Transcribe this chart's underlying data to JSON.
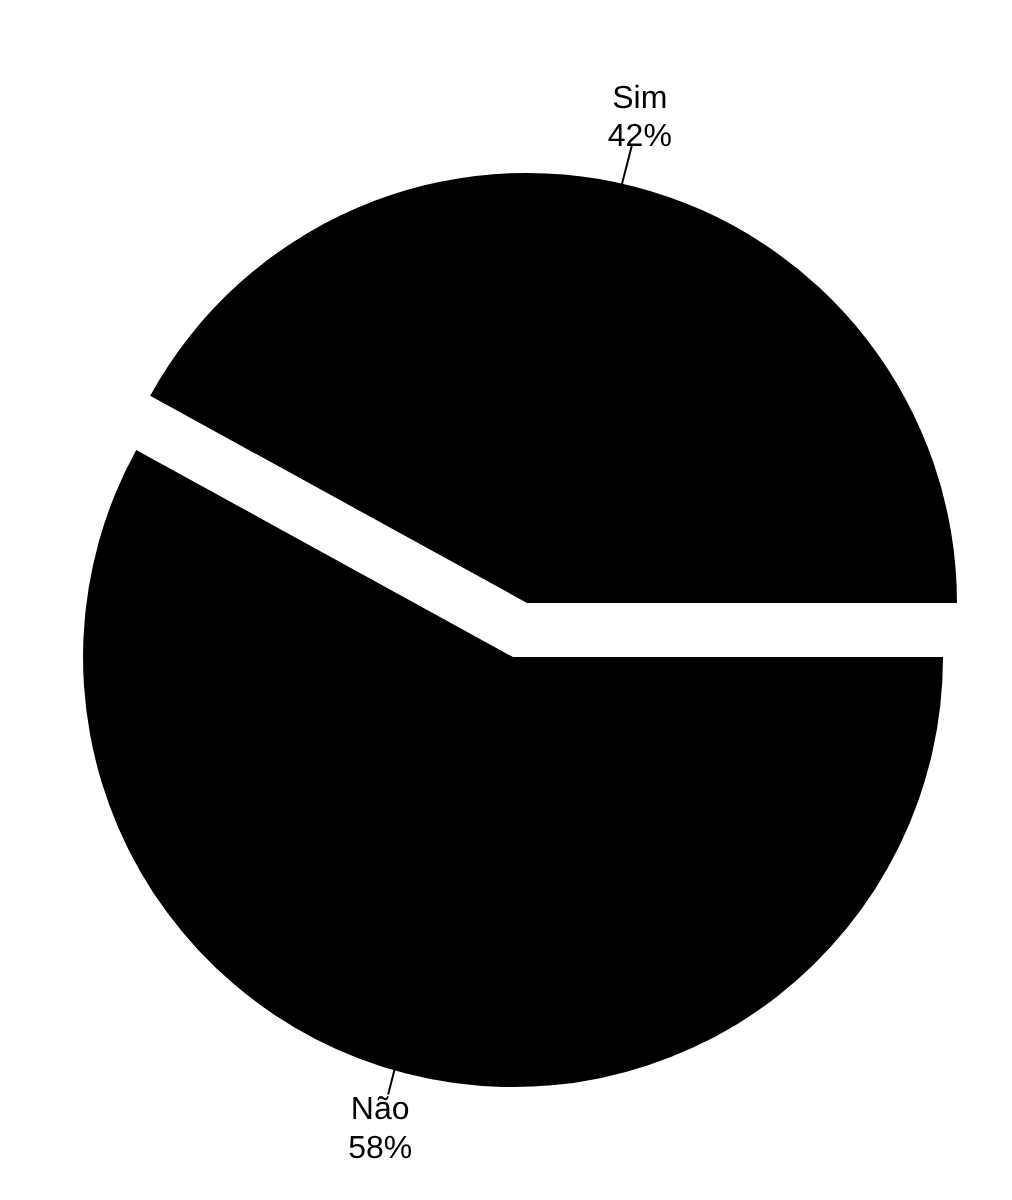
{
  "chart_data": {
    "type": "pie",
    "categories": [
      "Sim",
      "Não"
    ],
    "values": [
      42,
      58
    ],
    "colors": [
      "#000000",
      "#000000"
    ],
    "value_labels": [
      "42%",
      "58%"
    ]
  }
}
